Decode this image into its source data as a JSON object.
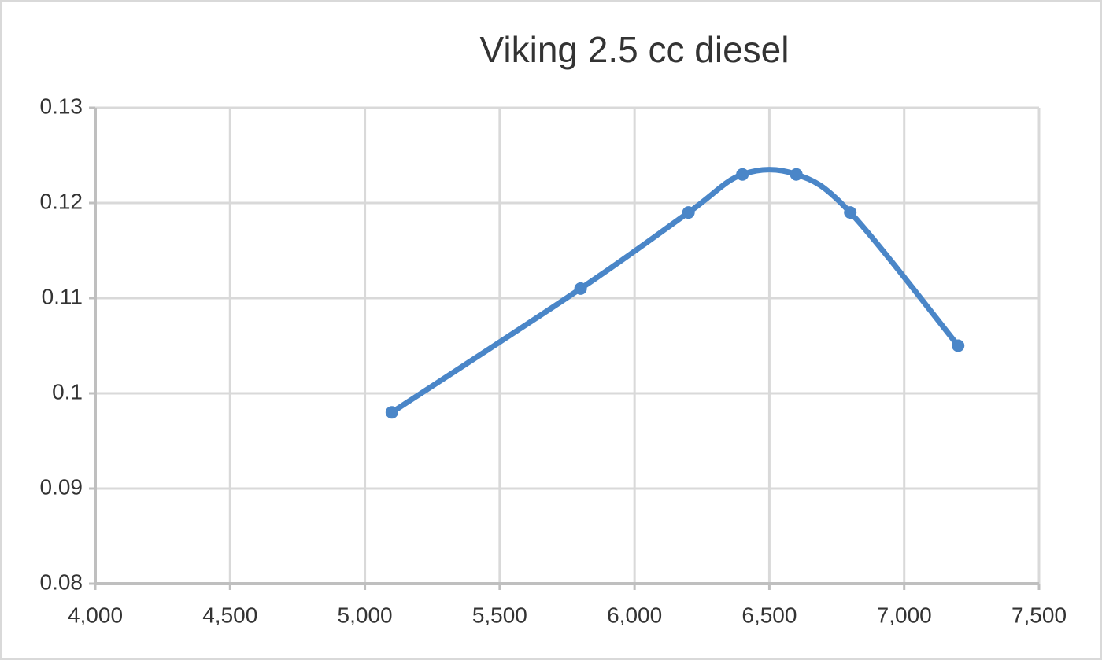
{
  "chart_data": {
    "type": "scatter",
    "title": "Viking 2.5 cc diesel",
    "x": [
      5100,
      5800,
      6200,
      6400,
      6600,
      6800,
      7200
    ],
    "values": [
      0.098,
      0.111,
      0.119,
      0.123,
      0.123,
      0.119,
      0.105
    ],
    "color": "#4a86c8",
    "smooth": true,
    "xlim": [
      4000,
      7500
    ],
    "xticks": [
      {
        "value": 4000,
        "label": "4,000"
      },
      {
        "value": 4500,
        "label": "4,500"
      },
      {
        "value": 5000,
        "label": "5,000"
      },
      {
        "value": 5500,
        "label": "5,500"
      },
      {
        "value": 6000,
        "label": "6,000"
      },
      {
        "value": 6500,
        "label": "6,500"
      },
      {
        "value": 7000,
        "label": "7,000"
      },
      {
        "value": 7500,
        "label": "7,500"
      }
    ],
    "ylim": [
      0.08,
      0.13
    ],
    "yticks": [
      0.08,
      0.09,
      0.1,
      0.11,
      0.12,
      0.13
    ],
    "grid": true
  }
}
